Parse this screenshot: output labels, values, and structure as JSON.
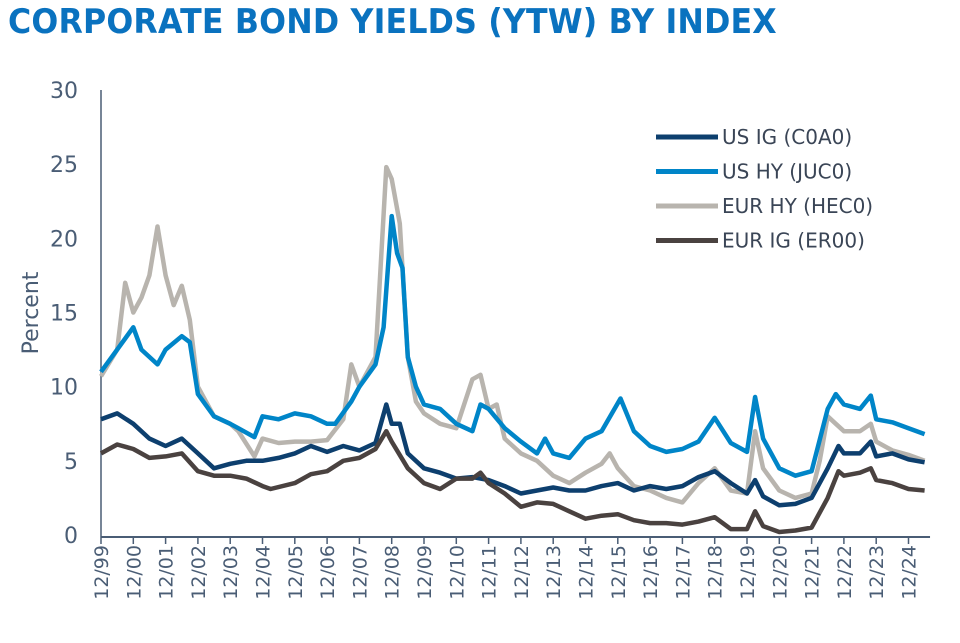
{
  "chart_data": {
    "type": "line",
    "title": "CORPORATE BOND YIELDS (YTW) BY INDEX",
    "ylabel": "Percent",
    "xlabel": "",
    "ylim": [
      0,
      30
    ],
    "yticks": [
      0,
      5,
      10,
      15,
      20,
      25,
      30
    ],
    "xticks": [
      "12/99",
      "12/00",
      "12/01",
      "12/02",
      "12/03",
      "12/04",
      "12/05",
      "12/06",
      "12/07",
      "12/08",
      "12/09",
      "12/10",
      "12/11",
      "12/12",
      "12/13",
      "12/14",
      "12/15",
      "12/16",
      "12/17",
      "12/18",
      "12/19",
      "12/20",
      "12/21",
      "12/22",
      "12/23",
      "12/24"
    ],
    "xlim": [
      "1999-12",
      "2025-08"
    ],
    "grid": false,
    "legend": "top-right",
    "series": [
      {
        "name": "US IG (C0A0)",
        "color": "#0d3f6e",
        "points": [
          [
            "1999-12",
            7.8
          ],
          [
            "2000-06",
            8.2
          ],
          [
            "2000-12",
            7.5
          ],
          [
            "2001-06",
            6.5
          ],
          [
            "2001-12",
            6.0
          ],
          [
            "2002-06",
            6.5
          ],
          [
            "2002-12",
            5.5
          ],
          [
            "2003-06",
            4.5
          ],
          [
            "2003-12",
            4.8
          ],
          [
            "2004-06",
            5.0
          ],
          [
            "2004-12",
            5.0
          ],
          [
            "2005-06",
            5.2
          ],
          [
            "2005-12",
            5.5
          ],
          [
            "2006-06",
            6.0
          ],
          [
            "2006-12",
            5.6
          ],
          [
            "2007-06",
            6.0
          ],
          [
            "2007-12",
            5.7
          ],
          [
            "2008-06",
            6.2
          ],
          [
            "2008-10",
            8.8
          ],
          [
            "2008-12",
            7.5
          ],
          [
            "2009-03",
            7.5
          ],
          [
            "2009-06",
            5.5
          ],
          [
            "2009-12",
            4.5
          ],
          [
            "2010-06",
            4.2
          ],
          [
            "2010-12",
            3.8
          ],
          [
            "2011-06",
            3.9
          ],
          [
            "2011-12",
            3.7
          ],
          [
            "2012-06",
            3.3
          ],
          [
            "2012-12",
            2.8
          ],
          [
            "2013-06",
            3.0
          ],
          [
            "2013-12",
            3.2
          ],
          [
            "2014-06",
            3.0
          ],
          [
            "2014-12",
            3.0
          ],
          [
            "2015-06",
            3.3
          ],
          [
            "2015-12",
            3.5
          ],
          [
            "2016-06",
            3.0
          ],
          [
            "2016-12",
            3.3
          ],
          [
            "2017-06",
            3.1
          ],
          [
            "2017-12",
            3.3
          ],
          [
            "2018-06",
            3.9
          ],
          [
            "2018-12",
            4.3
          ],
          [
            "2019-06",
            3.5
          ],
          [
            "2019-12",
            2.8
          ],
          [
            "2020-03",
            3.7
          ],
          [
            "2020-06",
            2.6
          ],
          [
            "2020-12",
            2.0
          ],
          [
            "2021-06",
            2.1
          ],
          [
            "2021-12",
            2.5
          ],
          [
            "2022-06",
            4.5
          ],
          [
            "2022-10",
            6.0
          ],
          [
            "2022-12",
            5.5
          ],
          [
            "2023-06",
            5.5
          ],
          [
            "2023-10",
            6.3
          ],
          [
            "2023-12",
            5.3
          ],
          [
            "2024-06",
            5.5
          ],
          [
            "2024-12",
            5.1
          ],
          [
            "2025-06",
            4.9
          ]
        ]
      },
      {
        "name": "US HY (JUC0)",
        "color": "#0085c8",
        "points": [
          [
            "1999-12",
            11.0
          ],
          [
            "2000-06",
            12.5
          ],
          [
            "2000-12",
            14.0
          ],
          [
            "2001-03",
            12.5
          ],
          [
            "2001-09",
            11.5
          ],
          [
            "2001-12",
            12.5
          ],
          [
            "2002-06",
            13.4
          ],
          [
            "2002-09",
            13.0
          ],
          [
            "2002-12",
            9.5
          ],
          [
            "2003-06",
            8.0
          ],
          [
            "2003-12",
            7.5
          ],
          [
            "2004-03",
            7.2
          ],
          [
            "2004-09",
            6.6
          ],
          [
            "2004-12",
            8.0
          ],
          [
            "2005-06",
            7.8
          ],
          [
            "2005-12",
            8.2
          ],
          [
            "2006-06",
            8.0
          ],
          [
            "2006-12",
            7.5
          ],
          [
            "2007-03",
            7.5
          ],
          [
            "2007-09",
            9.0
          ],
          [
            "2007-12",
            10.0
          ],
          [
            "2008-06",
            11.5
          ],
          [
            "2008-09",
            14.0
          ],
          [
            "2008-12",
            21.5
          ],
          [
            "2009-02",
            19.0
          ],
          [
            "2009-04",
            18.0
          ],
          [
            "2009-06",
            12.0
          ],
          [
            "2009-09",
            10.0
          ],
          [
            "2009-12",
            8.8
          ],
          [
            "2010-06",
            8.5
          ],
          [
            "2010-12",
            7.5
          ],
          [
            "2011-06",
            7.0
          ],
          [
            "2011-09",
            8.8
          ],
          [
            "2011-12",
            8.5
          ],
          [
            "2012-06",
            7.2
          ],
          [
            "2012-12",
            6.3
          ],
          [
            "2013-06",
            5.5
          ],
          [
            "2013-09",
            6.5
          ],
          [
            "2013-12",
            5.5
          ],
          [
            "2014-06",
            5.2
          ],
          [
            "2014-12",
            6.5
          ],
          [
            "2015-06",
            7.0
          ],
          [
            "2016-01",
            9.2
          ],
          [
            "2016-06",
            7.0
          ],
          [
            "2016-12",
            6.0
          ],
          [
            "2017-06",
            5.6
          ],
          [
            "2017-12",
            5.8
          ],
          [
            "2018-06",
            6.3
          ],
          [
            "2018-12",
            7.9
          ],
          [
            "2019-06",
            6.2
          ],
          [
            "2019-12",
            5.6
          ],
          [
            "2020-03",
            9.3
          ],
          [
            "2020-06",
            6.5
          ],
          [
            "2020-12",
            4.5
          ],
          [
            "2021-06",
            4.0
          ],
          [
            "2021-12",
            4.3
          ],
          [
            "2022-06",
            8.5
          ],
          [
            "2022-09",
            9.5
          ],
          [
            "2022-12",
            8.8
          ],
          [
            "2023-06",
            8.5
          ],
          [
            "2023-10",
            9.4
          ],
          [
            "2023-12",
            7.8
          ],
          [
            "2024-06",
            7.6
          ],
          [
            "2024-12",
            7.2
          ],
          [
            "2025-06",
            6.8
          ]
        ]
      },
      {
        "name": "EUR HY (HEC0)",
        "color": "#b8b4ae",
        "points": [
          [
            "1999-12",
            10.7
          ],
          [
            "2000-06",
            12.5
          ],
          [
            "2000-09",
            17.0
          ],
          [
            "2000-12",
            15.0
          ],
          [
            "2001-03",
            16.0
          ],
          [
            "2001-06",
            17.5
          ],
          [
            "2001-09",
            20.8
          ],
          [
            "2001-12",
            17.5
          ],
          [
            "2002-03",
            15.5
          ],
          [
            "2002-06",
            16.8
          ],
          [
            "2002-09",
            14.5
          ],
          [
            "2002-12",
            10.0
          ],
          [
            "2003-06",
            8.0
          ],
          [
            "2003-12",
            7.5
          ],
          [
            "2004-03",
            7.0
          ],
          [
            "2004-09",
            5.3
          ],
          [
            "2004-12",
            6.5
          ],
          [
            "2005-06",
            6.2
          ],
          [
            "2005-12",
            6.3
          ],
          [
            "2006-06",
            6.3
          ],
          [
            "2006-12",
            6.4
          ],
          [
            "2007-06",
            7.8
          ],
          [
            "2007-09",
            11.5
          ],
          [
            "2007-12",
            10.0
          ],
          [
            "2008-06",
            12.0
          ],
          [
            "2008-10",
            24.8
          ],
          [
            "2008-12",
            24.0
          ],
          [
            "2009-03",
            21.0
          ],
          [
            "2009-06",
            12.0
          ],
          [
            "2009-09",
            9.0
          ],
          [
            "2009-12",
            8.2
          ],
          [
            "2010-06",
            7.5
          ],
          [
            "2010-12",
            7.2
          ],
          [
            "2011-06",
            10.5
          ],
          [
            "2011-09",
            10.8
          ],
          [
            "2011-12",
            8.5
          ],
          [
            "2012-03",
            8.8
          ],
          [
            "2012-06",
            6.5
          ],
          [
            "2012-12",
            5.5
          ],
          [
            "2013-06",
            5.0
          ],
          [
            "2013-12",
            4.0
          ],
          [
            "2014-06",
            3.5
          ],
          [
            "2014-12",
            4.2
          ],
          [
            "2015-06",
            4.8
          ],
          [
            "2015-09",
            5.5
          ],
          [
            "2015-12",
            4.5
          ],
          [
            "2016-06",
            3.3
          ],
          [
            "2016-12",
            3.0
          ],
          [
            "2017-06",
            2.5
          ],
          [
            "2017-12",
            2.2
          ],
          [
            "2018-06",
            3.5
          ],
          [
            "2018-12",
            4.5
          ],
          [
            "2019-06",
            3.0
          ],
          [
            "2019-12",
            2.8
          ],
          [
            "2020-03",
            7.0
          ],
          [
            "2020-06",
            4.5
          ],
          [
            "2020-12",
            3.0
          ],
          [
            "2021-06",
            2.5
          ],
          [
            "2021-12",
            2.8
          ],
          [
            "2022-03",
            5.0
          ],
          [
            "2022-06",
            8.0
          ],
          [
            "2022-09",
            7.5
          ],
          [
            "2022-12",
            7.0
          ],
          [
            "2023-06",
            7.0
          ],
          [
            "2023-10",
            7.5
          ],
          [
            "2023-12",
            6.3
          ],
          [
            "2024-06",
            5.7
          ],
          [
            "2024-12",
            5.4
          ],
          [
            "2025-06",
            5.0
          ]
        ]
      },
      {
        "name": "EUR IG (ER00)",
        "color": "#4a4240",
        "points": [
          [
            "1999-12",
            5.5
          ],
          [
            "2000-06",
            6.1
          ],
          [
            "2000-12",
            5.8
          ],
          [
            "2001-06",
            5.2
          ],
          [
            "2001-12",
            5.3
          ],
          [
            "2002-06",
            5.5
          ],
          [
            "2002-12",
            4.3
          ],
          [
            "2003-06",
            4.0
          ],
          [
            "2003-12",
            4.0
          ],
          [
            "2004-06",
            3.8
          ],
          [
            "2004-12",
            3.3
          ],
          [
            "2005-03",
            3.1
          ],
          [
            "2005-12",
            3.5
          ],
          [
            "2006-06",
            4.1
          ],
          [
            "2006-12",
            4.3
          ],
          [
            "2007-06",
            5.0
          ],
          [
            "2007-12",
            5.2
          ],
          [
            "2008-06",
            5.8
          ],
          [
            "2008-10",
            7.0
          ],
          [
            "2008-12",
            6.3
          ],
          [
            "2009-06",
            4.5
          ],
          [
            "2009-12",
            3.5
          ],
          [
            "2010-06",
            3.1
          ],
          [
            "2010-12",
            3.8
          ],
          [
            "2011-06",
            3.8
          ],
          [
            "2011-09",
            4.2
          ],
          [
            "2011-12",
            3.5
          ],
          [
            "2012-06",
            2.8
          ],
          [
            "2012-12",
            1.9
          ],
          [
            "2013-06",
            2.2
          ],
          [
            "2013-12",
            2.1
          ],
          [
            "2014-06",
            1.6
          ],
          [
            "2014-12",
            1.1
          ],
          [
            "2015-06",
            1.3
          ],
          [
            "2015-12",
            1.4
          ],
          [
            "2016-06",
            1.0
          ],
          [
            "2016-12",
            0.8
          ],
          [
            "2017-06",
            0.8
          ],
          [
            "2017-12",
            0.7
          ],
          [
            "2018-06",
            0.9
          ],
          [
            "2018-12",
            1.2
          ],
          [
            "2019-06",
            0.4
          ],
          [
            "2019-12",
            0.4
          ],
          [
            "2020-03",
            1.6
          ],
          [
            "2020-06",
            0.6
          ],
          [
            "2020-12",
            0.2
          ],
          [
            "2021-06",
            0.3
          ],
          [
            "2021-12",
            0.5
          ],
          [
            "2022-06",
            2.5
          ],
          [
            "2022-10",
            4.3
          ],
          [
            "2022-12",
            4.0
          ],
          [
            "2023-06",
            4.2
          ],
          [
            "2023-10",
            4.5
          ],
          [
            "2023-12",
            3.7
          ],
          [
            "2024-06",
            3.5
          ],
          [
            "2024-12",
            3.1
          ],
          [
            "2025-06",
            3.0
          ]
        ]
      }
    ]
  }
}
